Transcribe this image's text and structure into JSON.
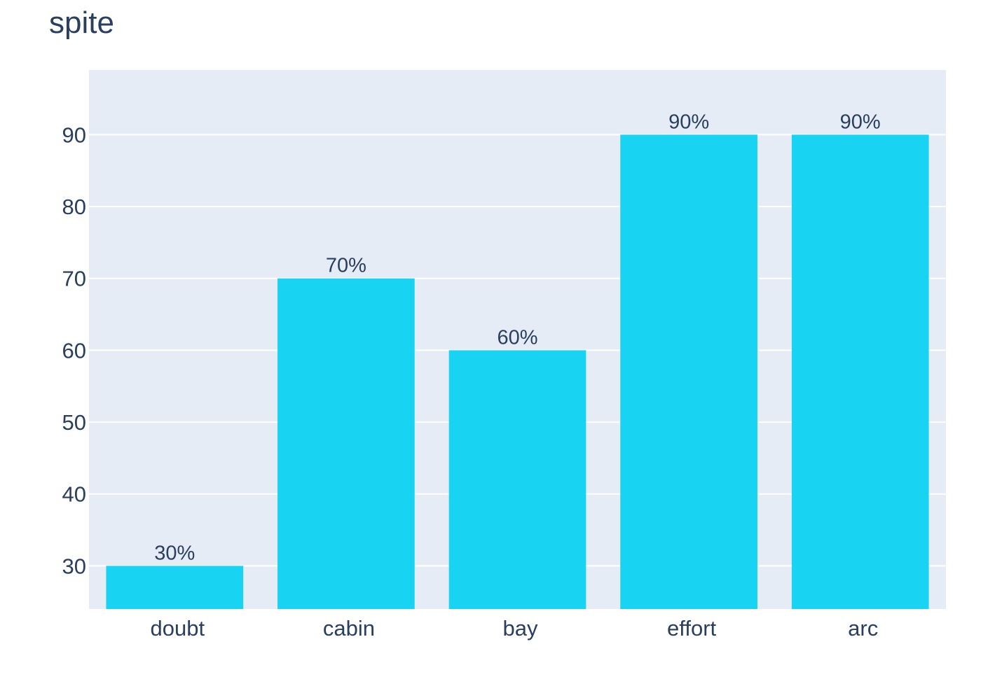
{
  "chart_data": {
    "type": "bar",
    "title": "spite",
    "categories": [
      "doubt",
      "cabin",
      "bay",
      "effort",
      "arc"
    ],
    "values": [
      30,
      70,
      60,
      90,
      90
    ],
    "data_labels": [
      "30%",
      "70%",
      "60%",
      "90%",
      "90%"
    ],
    "xlabel": "",
    "ylabel": "",
    "ylim": [
      24,
      99
    ],
    "yticks": [
      30,
      40,
      50,
      60,
      70,
      80,
      90
    ],
    "grid": true,
    "colors": {
      "bar": "#19d3f3",
      "plot_bg": "#e5ecf6",
      "grid": "#ffffff",
      "text": "#2a3f5f"
    }
  }
}
